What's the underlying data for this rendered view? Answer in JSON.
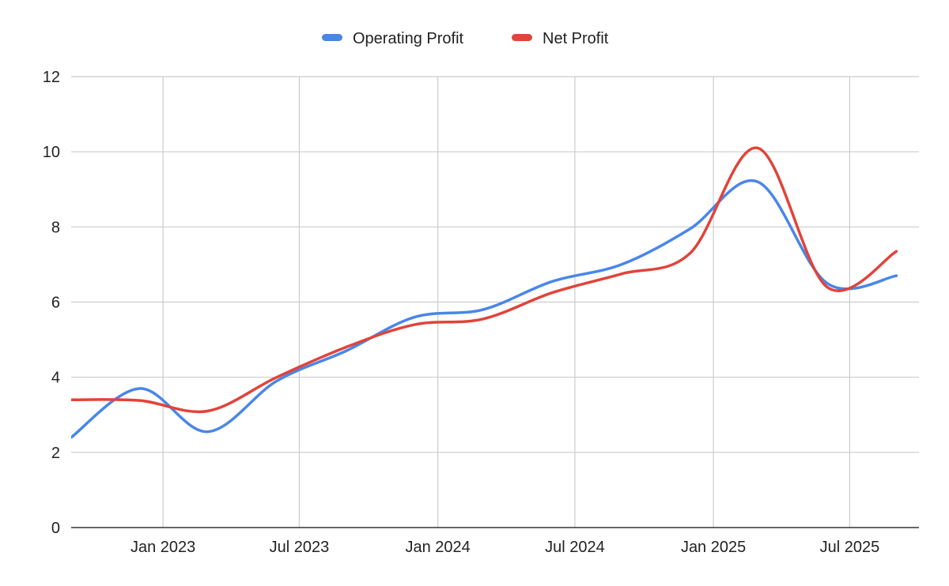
{
  "chart_data": {
    "type": "line",
    "title": "",
    "xlabel": "",
    "ylabel": "",
    "ylim": [
      0,
      12
    ],
    "yticks": [
      0,
      2,
      4,
      6,
      8,
      10,
      12
    ],
    "xlim": [
      "2022-09-01",
      "2025-10-01"
    ],
    "xticks": [
      {
        "date": "2023-01-01",
        "label": "Jan 2023"
      },
      {
        "date": "2023-07-01",
        "label": "Jul 2023"
      },
      {
        "date": "2024-01-01",
        "label": "Jan 2024"
      },
      {
        "date": "2024-07-01",
        "label": "Jul 2024"
      },
      {
        "date": "2025-01-01",
        "label": "Jan 2025"
      },
      {
        "date": "2025-07-01",
        "label": "Jul 2025"
      }
    ],
    "grid": true,
    "legend_position": "top",
    "series": [
      {
        "name": "Operating Profit",
        "color": "#4a86e8",
        "points": [
          {
            "x": "2022-09-01",
            "y": 2.4
          },
          {
            "x": "2022-12-01",
            "y": 3.7
          },
          {
            "x": "2023-03-01",
            "y": 2.55
          },
          {
            "x": "2023-06-01",
            "y": 3.9
          },
          {
            "x": "2023-09-01",
            "y": 4.7
          },
          {
            "x": "2023-12-01",
            "y": 5.6
          },
          {
            "x": "2024-03-01",
            "y": 5.8
          },
          {
            "x": "2024-06-01",
            "y": 6.55
          },
          {
            "x": "2024-09-01",
            "y": 7.0
          },
          {
            "x": "2024-12-01",
            "y": 7.95
          },
          {
            "x": "2025-03-01",
            "y": 9.2
          },
          {
            "x": "2025-06-01",
            "y": 6.5
          },
          {
            "x": "2025-09-01",
            "y": 6.7
          }
        ]
      },
      {
        "name": "Net Profit",
        "color": "#e0443a",
        "points": [
          {
            "x": "2022-09-01",
            "y": 3.4
          },
          {
            "x": "2022-12-01",
            "y": 3.38
          },
          {
            "x": "2023-03-01",
            "y": 3.1
          },
          {
            "x": "2023-06-01",
            "y": 4.0
          },
          {
            "x": "2023-09-01",
            "y": 4.8
          },
          {
            "x": "2023-12-01",
            "y": 5.4
          },
          {
            "x": "2024-03-01",
            "y": 5.55
          },
          {
            "x": "2024-06-01",
            "y": 6.25
          },
          {
            "x": "2024-09-01",
            "y": 6.75
          },
          {
            "x": "2024-12-01",
            "y": 7.3
          },
          {
            "x": "2025-03-01",
            "y": 10.1
          },
          {
            "x": "2025-06-01",
            "y": 6.4
          },
          {
            "x": "2025-09-01",
            "y": 7.35
          }
        ]
      }
    ]
  }
}
